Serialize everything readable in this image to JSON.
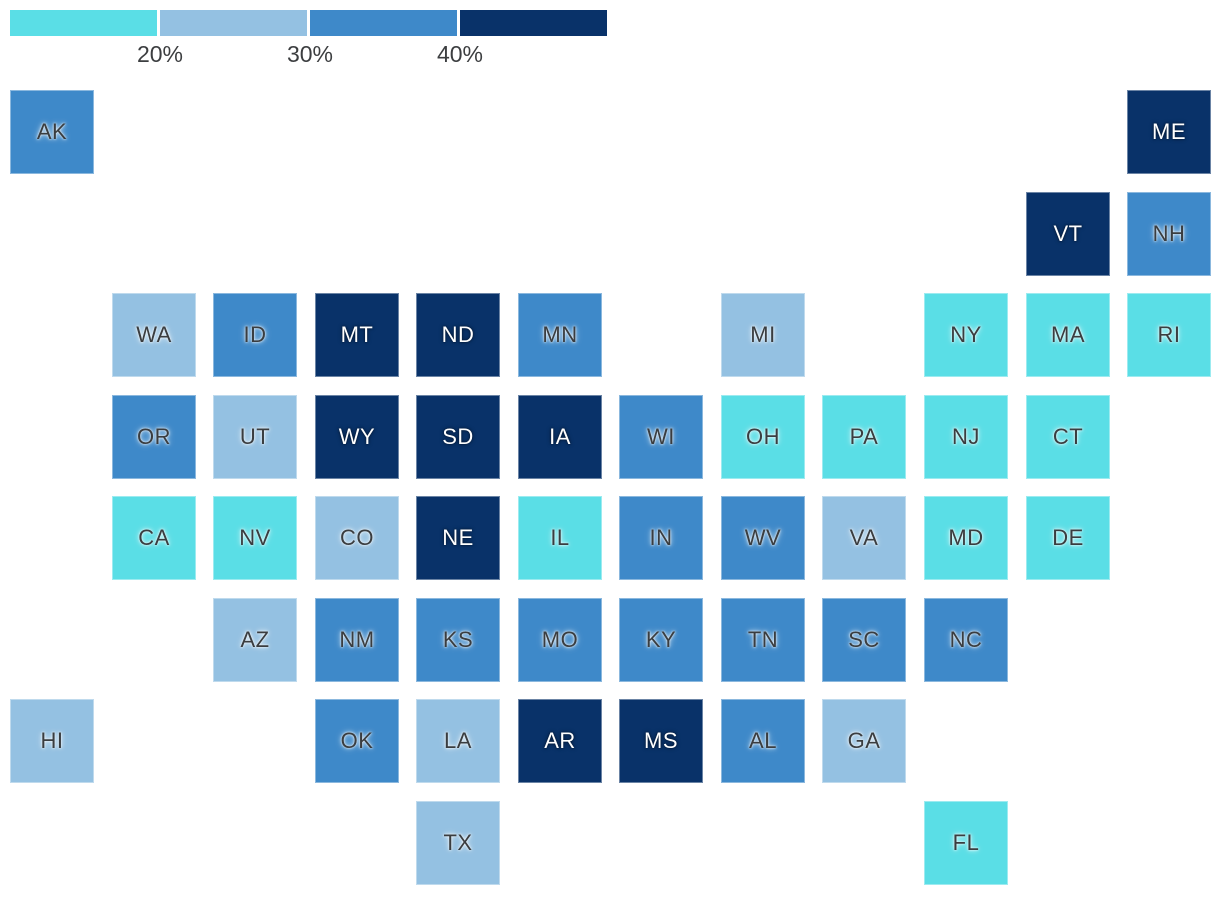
{
  "chart_data": {
    "type": "heatmap",
    "subtype": "us-state-tile-grid-cartogram",
    "title": "",
    "legend": {
      "tick_labels": [
        "20%",
        "30%",
        "40%"
      ],
      "position": "top-left",
      "bands": [
        {
          "range": "< 20%",
          "color": "#5adee6",
          "text": "dark"
        },
        {
          "range": "20-30%",
          "color": "#94c1e2",
          "text": "dark"
        },
        {
          "range": "30-40%",
          "color": "#3e89c9",
          "text": "dark"
        },
        {
          "range": ">= 40%",
          "color": "#093269",
          "text": "light"
        }
      ]
    },
    "states": [
      {
        "abbr": "AK",
        "row": 0,
        "col": 0,
        "band": 2
      },
      {
        "abbr": "ME",
        "row": 0,
        "col": 11,
        "band": 3
      },
      {
        "abbr": "VT",
        "row": 1,
        "col": 10,
        "band": 3
      },
      {
        "abbr": "NH",
        "row": 1,
        "col": 11,
        "band": 2
      },
      {
        "abbr": "WA",
        "row": 2,
        "col": 1,
        "band": 1
      },
      {
        "abbr": "ID",
        "row": 2,
        "col": 2,
        "band": 2
      },
      {
        "abbr": "MT",
        "row": 2,
        "col": 3,
        "band": 3
      },
      {
        "abbr": "ND",
        "row": 2,
        "col": 4,
        "band": 3
      },
      {
        "abbr": "MN",
        "row": 2,
        "col": 5,
        "band": 2
      },
      {
        "abbr": "MI",
        "row": 2,
        "col": 7,
        "band": 1
      },
      {
        "abbr": "NY",
        "row": 2,
        "col": 9,
        "band": 0
      },
      {
        "abbr": "MA",
        "row": 2,
        "col": 10,
        "band": 0
      },
      {
        "abbr": "RI",
        "row": 2,
        "col": 11,
        "band": 0
      },
      {
        "abbr": "OR",
        "row": 3,
        "col": 1,
        "band": 2
      },
      {
        "abbr": "UT",
        "row": 3,
        "col": 2,
        "band": 1
      },
      {
        "abbr": "WY",
        "row": 3,
        "col": 3,
        "band": 3
      },
      {
        "abbr": "SD",
        "row": 3,
        "col": 4,
        "band": 3
      },
      {
        "abbr": "IA",
        "row": 3,
        "col": 5,
        "band": 3
      },
      {
        "abbr": "WI",
        "row": 3,
        "col": 6,
        "band": 2
      },
      {
        "abbr": "OH",
        "row": 3,
        "col": 7,
        "band": 0
      },
      {
        "abbr": "PA",
        "row": 3,
        "col": 8,
        "band": 0
      },
      {
        "abbr": "NJ",
        "row": 3,
        "col": 9,
        "band": 0
      },
      {
        "abbr": "CT",
        "row": 3,
        "col": 10,
        "band": 0
      },
      {
        "abbr": "CA",
        "row": 4,
        "col": 1,
        "band": 0
      },
      {
        "abbr": "NV",
        "row": 4,
        "col": 2,
        "band": 0
      },
      {
        "abbr": "CO",
        "row": 4,
        "col": 3,
        "band": 1
      },
      {
        "abbr": "NE",
        "row": 4,
        "col": 4,
        "band": 3
      },
      {
        "abbr": "IL",
        "row": 4,
        "col": 5,
        "band": 0
      },
      {
        "abbr": "IN",
        "row": 4,
        "col": 6,
        "band": 2
      },
      {
        "abbr": "WV",
        "row": 4,
        "col": 7,
        "band": 2
      },
      {
        "abbr": "VA",
        "row": 4,
        "col": 8,
        "band": 1
      },
      {
        "abbr": "MD",
        "row": 4,
        "col": 9,
        "band": 0
      },
      {
        "abbr": "DE",
        "row": 4,
        "col": 10,
        "band": 0
      },
      {
        "abbr": "AZ",
        "row": 5,
        "col": 2,
        "band": 1
      },
      {
        "abbr": "NM",
        "row": 5,
        "col": 3,
        "band": 2
      },
      {
        "abbr": "KS",
        "row": 5,
        "col": 4,
        "band": 2
      },
      {
        "abbr": "MO",
        "row": 5,
        "col": 5,
        "band": 2
      },
      {
        "abbr": "KY",
        "row": 5,
        "col": 6,
        "band": 2
      },
      {
        "abbr": "TN",
        "row": 5,
        "col": 7,
        "band": 2
      },
      {
        "abbr": "SC",
        "row": 5,
        "col": 8,
        "band": 2
      },
      {
        "abbr": "NC",
        "row": 5,
        "col": 9,
        "band": 2
      },
      {
        "abbr": "HI",
        "row": 6,
        "col": 0,
        "band": 1
      },
      {
        "abbr": "OK",
        "row": 6,
        "col": 3,
        "band": 2
      },
      {
        "abbr": "LA",
        "row": 6,
        "col": 4,
        "band": 1
      },
      {
        "abbr": "AR",
        "row": 6,
        "col": 5,
        "band": 3
      },
      {
        "abbr": "MS",
        "row": 6,
        "col": 6,
        "band": 3
      },
      {
        "abbr": "AL",
        "row": 6,
        "col": 7,
        "band": 2
      },
      {
        "abbr": "GA",
        "row": 6,
        "col": 8,
        "band": 1
      },
      {
        "abbr": "TX",
        "row": 7,
        "col": 4,
        "band": 1
      },
      {
        "abbr": "FL",
        "row": 7,
        "col": 9,
        "band": 0
      }
    ]
  }
}
